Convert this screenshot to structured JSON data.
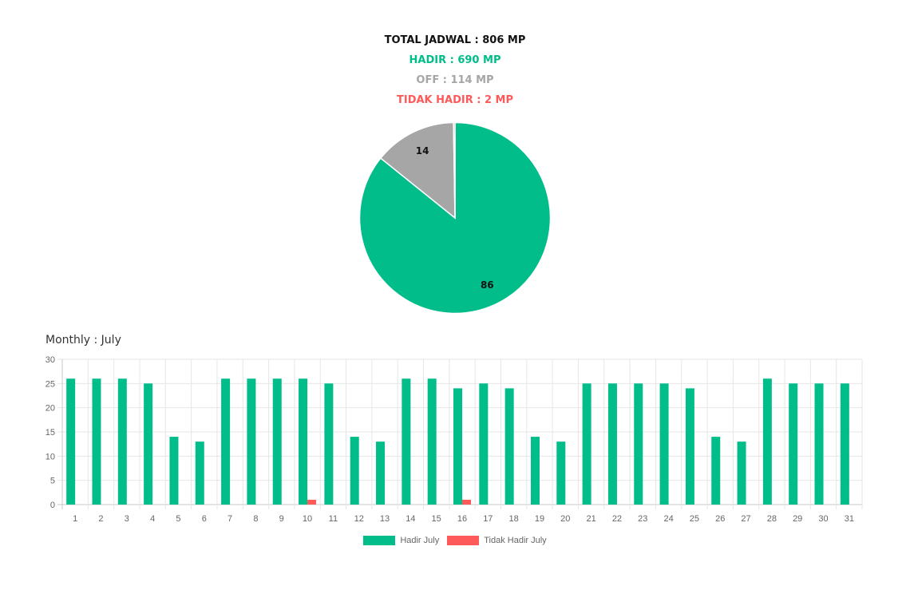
{
  "summary": {
    "total": "TOTAL JADWAL : 806 MP",
    "hadir": "HADIR : 690 MP",
    "off": "OFF : 114 MP",
    "tidak_hadir": "TIDAK HADIR : 2 MP"
  },
  "colors": {
    "hadir": "#00bd8a",
    "off": "#a6a6a6",
    "tidak_hadir": "#ff5a5a"
  },
  "chart_data": [
    {
      "type": "pie",
      "slices": [
        {
          "label": "86",
          "value": 86,
          "color": "#00bd8a"
        },
        {
          "label": "14",
          "value": 14,
          "color": "#a6a6a6"
        },
        {
          "label": "",
          "value": 0.25,
          "color": "#ff5a5a"
        }
      ]
    },
    {
      "type": "bar",
      "title": "Monthly : July",
      "categories": [
        "1",
        "2",
        "3",
        "4",
        "5",
        "6",
        "7",
        "8",
        "9",
        "10",
        "11",
        "12",
        "13",
        "14",
        "15",
        "16",
        "17",
        "18",
        "19",
        "20",
        "21",
        "22",
        "23",
        "24",
        "25",
        "26",
        "27",
        "28",
        "29",
        "30",
        "31"
      ],
      "series": [
        {
          "name": "Hadir July",
          "color": "#00bd8a",
          "values": [
            26,
            26,
            26,
            25,
            14,
            13,
            26,
            26,
            26,
            26,
            25,
            14,
            13,
            26,
            26,
            24,
            25,
            24,
            14,
            13,
            25,
            25,
            25,
            25,
            24,
            14,
            13,
            26,
            25,
            25,
            25
          ]
        },
        {
          "name": "Tidak Hadir July",
          "color": "#ff5a5a",
          "values": [
            0,
            0,
            0,
            0,
            0,
            0,
            0,
            0,
            0,
            1,
            0,
            0,
            0,
            0,
            0,
            1,
            0,
            0,
            0,
            0,
            0,
            0,
            0,
            0,
            0,
            0,
            0,
            0,
            0,
            0,
            0
          ]
        }
      ],
      "yticks": [
        "0",
        "5",
        "10",
        "15",
        "20",
        "25",
        "30"
      ],
      "ylim": [
        0,
        30
      ],
      "grid": true,
      "legend": "bottom"
    }
  ]
}
